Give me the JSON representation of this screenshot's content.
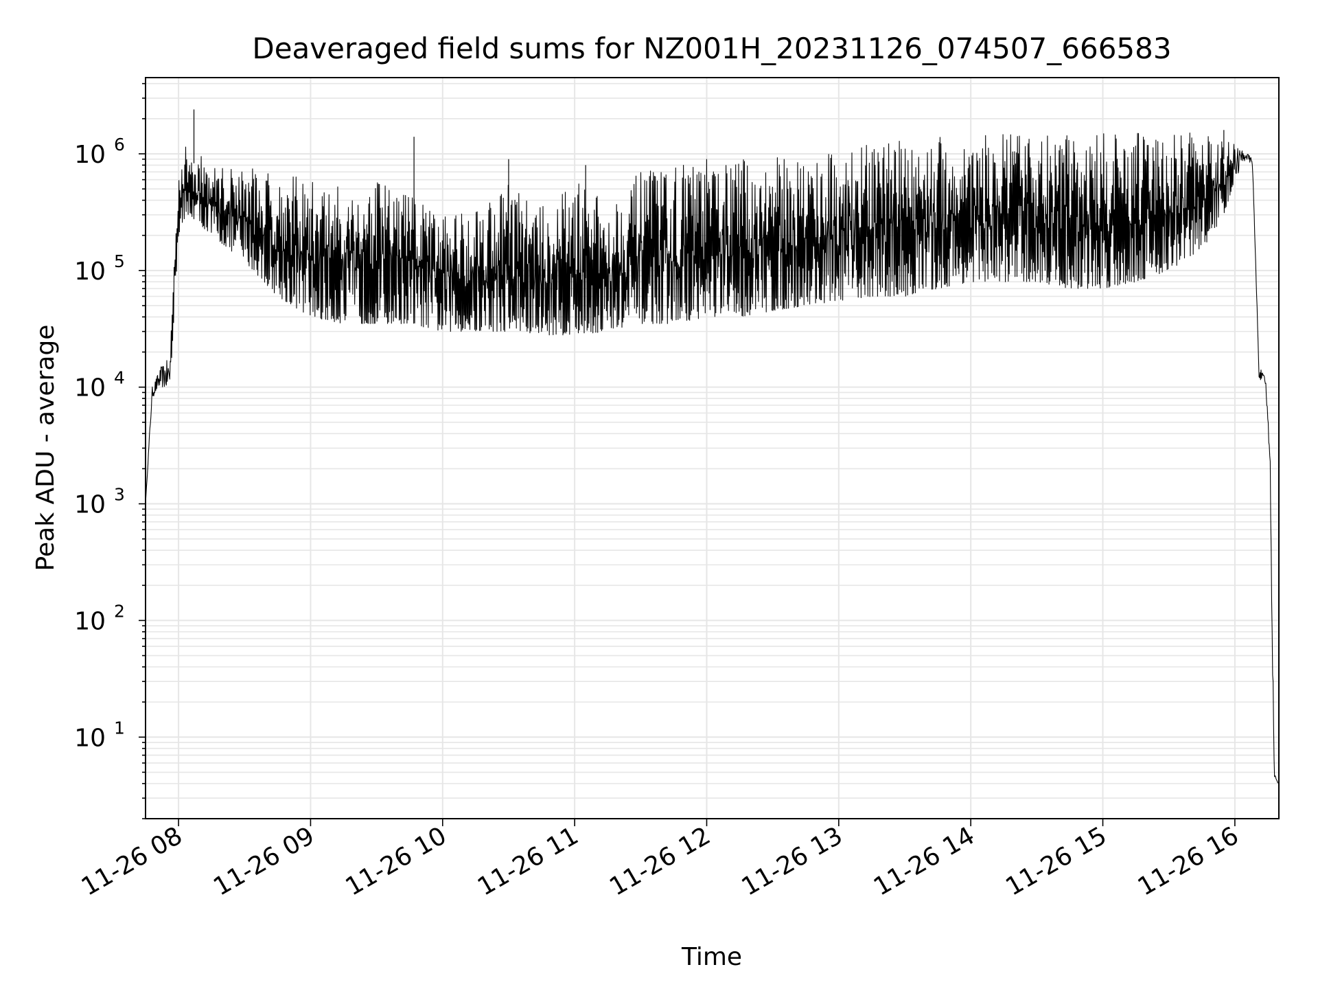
{
  "chart_data": {
    "type": "line",
    "title": "Deaveraged field sums for NZ001H_20231126_074507_666583",
    "xlabel": "Time",
    "ylabel": "Peak ADU - average",
    "yscale": "log",
    "grid": true,
    "line_color": "#000000",
    "grid_color": "#e6e6e6",
    "x_tick_labels": [
      "11-26 08",
      "11-26 09",
      "11-26 10",
      "11-26 11",
      "11-26 12",
      "11-26 13",
      "11-26 14",
      "11-26 15",
      "11-26 16"
    ],
    "y_tick_labels": [
      {
        "base": "10",
        "exp": "1"
      },
      {
        "base": "10",
        "exp": "2"
      },
      {
        "base": "10",
        "exp": "3"
      },
      {
        "base": "10",
        "exp": "4"
      },
      {
        "base": "10",
        "exp": "5"
      },
      {
        "base": "10",
        "exp": "6"
      }
    ],
    "xlim": [
      "2023-11-26 07:45",
      "2023-11-26 16:20"
    ],
    "ylim": [
      2,
      4500000
    ],
    "series": [
      {
        "style": "envelope",
        "x": [
          "2023-11-26 07:45",
          "2023-11-26 07:48",
          "2023-11-26 07:52",
          "2023-11-26 07:56",
          "2023-11-26 08:00",
          "2023-11-26 08:05",
          "2023-11-26 08:15",
          "2023-11-26 08:30",
          "2023-11-26 08:45",
          "2023-11-26 09:00",
          "2023-11-26 09:15",
          "2023-11-26 09:30",
          "2023-11-26 09:45",
          "2023-11-26 10:00",
          "2023-11-26 10:15",
          "2023-11-26 10:30",
          "2023-11-26 10:45",
          "2023-11-26 11:00",
          "2023-11-26 11:15",
          "2023-11-26 11:30",
          "2023-11-26 11:45",
          "2023-11-26 12:00",
          "2023-11-26 12:15",
          "2023-11-26 12:30",
          "2023-11-26 12:45",
          "2023-11-26 13:00",
          "2023-11-26 13:15",
          "2023-11-26 13:30",
          "2023-11-26 13:45",
          "2023-11-26 14:00",
          "2023-11-26 14:15",
          "2023-11-26 14:30",
          "2023-11-26 14:45",
          "2023-11-26 15:00",
          "2023-11-26 15:15",
          "2023-11-26 15:30",
          "2023-11-26 15:45",
          "2023-11-26 15:55",
          "2023-11-26 16:00",
          "2023-11-26 16:05",
          "2023-11-26 16:08",
          "2023-11-26 16:11",
          "2023-11-26 16:14",
          "2023-11-26 16:16",
          "2023-11-26 16:17",
          "2023-11-26 16:18",
          "2023-11-26 16:20"
        ],
        "upper": [
          1000,
          10000,
          15000,
          18000,
          1100000,
          1200000,
          800000,
          800000,
          700000,
          600000,
          550000,
          600000,
          500000,
          300000,
          400000,
          600000,
          350000,
          600000,
          400000,
          700000,
          800000,
          900000,
          900000,
          950000,
          1000000,
          1100000,
          1200000,
          1400000,
          1400000,
          1400000,
          1500000,
          1500000,
          1500000,
          1500000,
          1500000,
          1600000,
          1500000,
          1400000,
          1200000,
          1050000,
          900000,
          15000,
          12000,
          3000,
          100,
          5,
          4
        ],
        "lower": [
          1000,
          8000,
          10000,
          9000,
          200000,
          300000,
          200000,
          120000,
          60000,
          40000,
          35000,
          35000,
          35000,
          30000,
          30000,
          30000,
          28000,
          28000,
          30000,
          35000,
          35000,
          40000,
          40000,
          45000,
          50000,
          55000,
          60000,
          60000,
          70000,
          80000,
          80000,
          80000,
          70000,
          70000,
          80000,
          100000,
          150000,
          300000,
          600000,
          900000,
          800000,
          12000,
          10000,
          2000,
          50,
          4,
          4
        ]
      }
    ],
    "spikes": [
      {
        "x": "2023-11-26 08:07",
        "y": 2400000
      },
      {
        "x": "2023-11-26 09:47",
        "y": 1400000
      },
      {
        "x": "2023-11-26 10:30",
        "y": 900000
      },
      {
        "x": "2023-11-26 11:05",
        "y": 800000
      },
      {
        "x": "2023-11-26 15:55",
        "y": 1600000
      }
    ]
  }
}
